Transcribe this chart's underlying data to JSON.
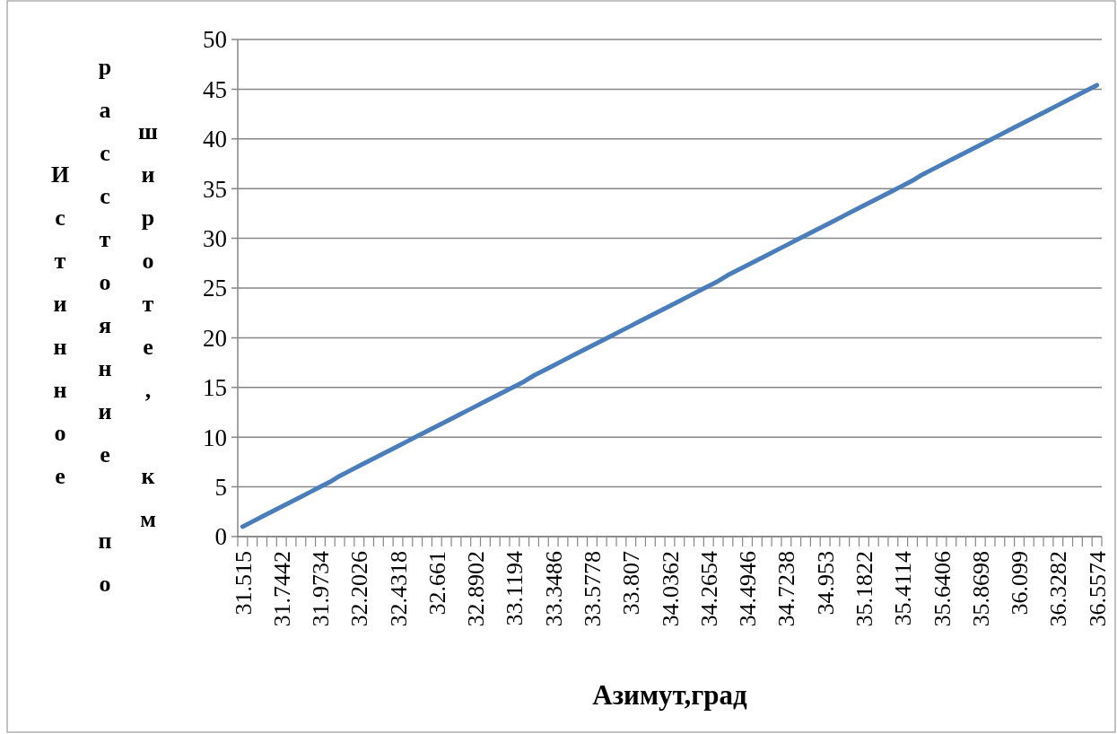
{
  "chart_data": {
    "type": "line",
    "xlabel": "Азимут,град",
    "ylabel": "Истинное расстояние по широте, км",
    "categories": [
      "31.515",
      null,
      null,
      null,
      "31.7442",
      null,
      null,
      null,
      "31.9734",
      null,
      null,
      null,
      "32.2026",
      null,
      null,
      null,
      "32.4318",
      null,
      null,
      null,
      "32.661",
      null,
      null,
      null,
      "32.8902",
      null,
      null,
      null,
      "33.1194",
      null,
      null,
      null,
      "33.3486",
      null,
      null,
      null,
      "33.5778",
      null,
      null,
      null,
      "33.807",
      null,
      null,
      null,
      "34.0362",
      null,
      null,
      null,
      "34.2654",
      null,
      null,
      null,
      "34.4946",
      null,
      null,
      null,
      "34.7238",
      null,
      null,
      null,
      "34.953",
      null,
      null,
      null,
      "35.1822",
      null,
      null,
      null,
      "35.4114",
      null,
      null,
      null,
      "35.6406",
      null,
      null,
      null,
      "35.8698",
      null,
      null,
      null,
      "36.099",
      null,
      null,
      null,
      "36.3282",
      null,
      null,
      null,
      "36.5574"
    ],
    "series": [
      {
        "color": "#4a7ebb",
        "values": [
          1.0,
          1.5,
          2.0,
          2.5,
          3.0,
          3.5,
          4.0,
          4.5,
          5.0,
          5.5,
          6.1,
          6.6,
          7.1,
          7.6,
          8.1,
          8.6,
          9.1,
          9.6,
          10.1,
          10.6,
          11.1,
          11.6,
          12.1,
          12.6,
          13.1,
          13.6,
          14.1,
          14.6,
          15.1,
          15.6,
          16.2,
          16.7,
          17.2,
          17.7,
          18.2,
          18.7,
          19.2,
          19.7,
          20.2,
          20.7,
          21.2,
          21.7,
          22.2,
          22.7,
          23.2,
          23.7,
          24.2,
          24.7,
          25.2,
          25.7,
          26.3,
          26.8,
          27.3,
          27.8,
          28.3,
          28.8,
          29.3,
          29.8,
          30.3,
          30.8,
          31.3,
          31.8,
          32.3,
          32.8,
          33.3,
          33.8,
          34.3,
          34.8,
          35.3,
          35.8,
          36.4,
          36.9,
          37.4,
          37.9,
          38.4,
          38.9,
          39.4,
          39.9,
          40.4,
          40.9,
          41.4,
          41.9,
          42.4,
          42.9,
          43.4,
          43.9,
          44.4,
          44.9,
          45.4
        ]
      }
    ],
    "ylim": [
      0,
      50
    ],
    "yticks": [
      0,
      5,
      10,
      15,
      20,
      25,
      30,
      35,
      40,
      45,
      50
    ],
    "grid": "y",
    "marker": "none",
    "line_style": "solid"
  }
}
